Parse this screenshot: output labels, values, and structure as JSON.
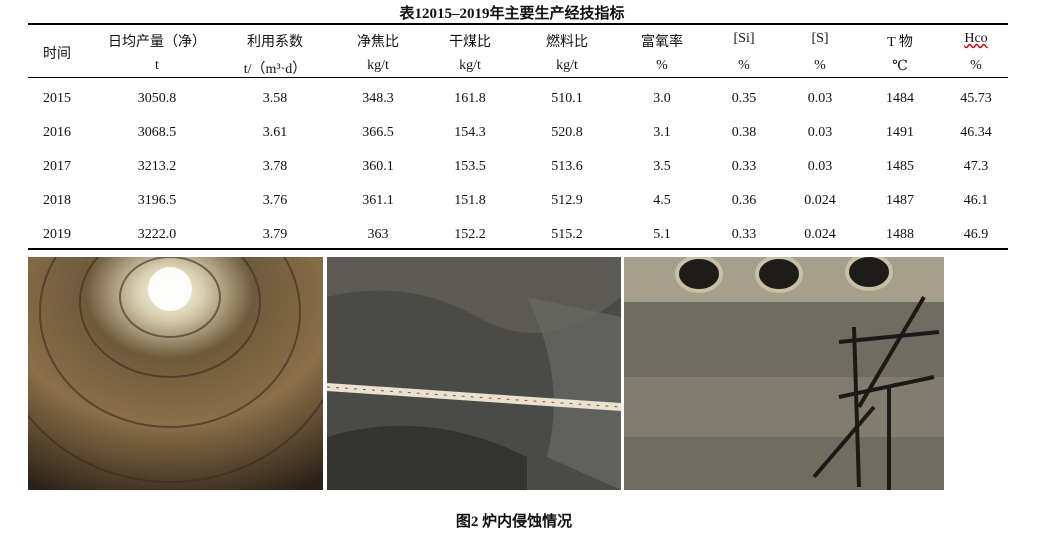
{
  "table": {
    "title": "表12015–2019年主要生产经技指标",
    "headers": [
      {
        "name": "时间"
      },
      {
        "name": "日均产量（净）",
        "unit": "t"
      },
      {
        "name": "利用系数",
        "unit": "t/（m³·d）"
      },
      {
        "name": "净焦比",
        "unit": "kg/t"
      },
      {
        "name": "干煤比",
        "unit": "kg/t"
      },
      {
        "name": "燃料比",
        "unit": "kg/t"
      },
      {
        "name": "富氧率",
        "unit": "%"
      },
      {
        "name": "[Si]",
        "unit": "%"
      },
      {
        "name": "[S]",
        "unit": "%"
      },
      {
        "name": "T 物",
        "unit": "℃"
      },
      {
        "name": "Hco",
        "unit": "%"
      }
    ],
    "rows": [
      [
        "2015",
        "3050.8",
        "3.58",
        "348.3",
        "161.8",
        "510.1",
        "3.0",
        "0.35",
        "0.03",
        "1484",
        "45.73"
      ],
      [
        "2016",
        "3068.5",
        "3.61",
        "366.5",
        "154.3",
        "520.8",
        "3.1",
        "0.38",
        "0.03",
        "1491",
        "46.34"
      ],
      [
        "2017",
        "3213.2",
        "3.78",
        "360.1",
        "153.5",
        "513.6",
        "3.5",
        "0.33",
        "0.03",
        "1485",
        "47.3"
      ],
      [
        "2018",
        "3196.5",
        "3.76",
        "361.1",
        "151.8",
        "512.9",
        "4.5",
        "0.36",
        "0.024",
        "1487",
        "46.1"
      ],
      [
        "2019",
        "3222.0",
        "3.79",
        "363",
        "152.2",
        "515.2",
        "5.1",
        "0.33",
        "0.024",
        "1488",
        "46.9"
      ]
    ]
  },
  "figure": {
    "caption": "图2 炉内侵蚀情况"
  }
}
